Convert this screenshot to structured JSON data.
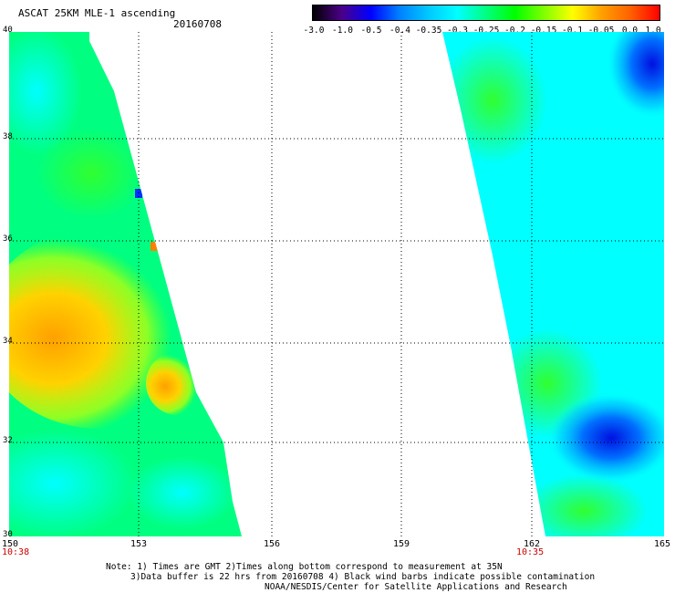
{
  "header": {
    "title": "ASCAT 25KM MLE-1 ascending",
    "date": "20160708"
  },
  "colorbar": {
    "tick_labels": [
      "-3.0",
      "-1.0",
      "-0.5",
      "-0.4",
      "-0.35",
      "-0.3",
      "-0.25",
      "-0.2",
      "-0.15",
      "-0.1",
      "-0.05",
      "0.0",
      "1.0"
    ],
    "colors": [
      "#000000",
      "#4b0088",
      "#0000ff",
      "#0080ff",
      "#00c8ff",
      "#00ffff",
      "#00ff80",
      "#00ff00",
      "#80ff00",
      "#ffff00",
      "#ffa000",
      "#ff6000",
      "#ff0000"
    ]
  },
  "axes": {
    "lat_labels": [
      "40",
      "38",
      "36",
      "34",
      "32",
      "30"
    ],
    "lon_labels": [
      "150",
      "153",
      "156",
      "159",
      "162",
      "165"
    ]
  },
  "pass_times": {
    "left": "10:38",
    "right": "10:35"
  },
  "notes": {
    "line1": "Note: 1) Times are GMT 2)Times along bottom correspond to measurement at 35N",
    "line2": "3)Data buffer is 22 hrs from 20160708 4) Black wind barbs indicate possible contamination",
    "line3": "NOAA/NESDIS/Center for Satellite Applications and Research"
  },
  "colors": {
    "time_label": "#cc0000",
    "swath_background": "#00ff80"
  }
}
